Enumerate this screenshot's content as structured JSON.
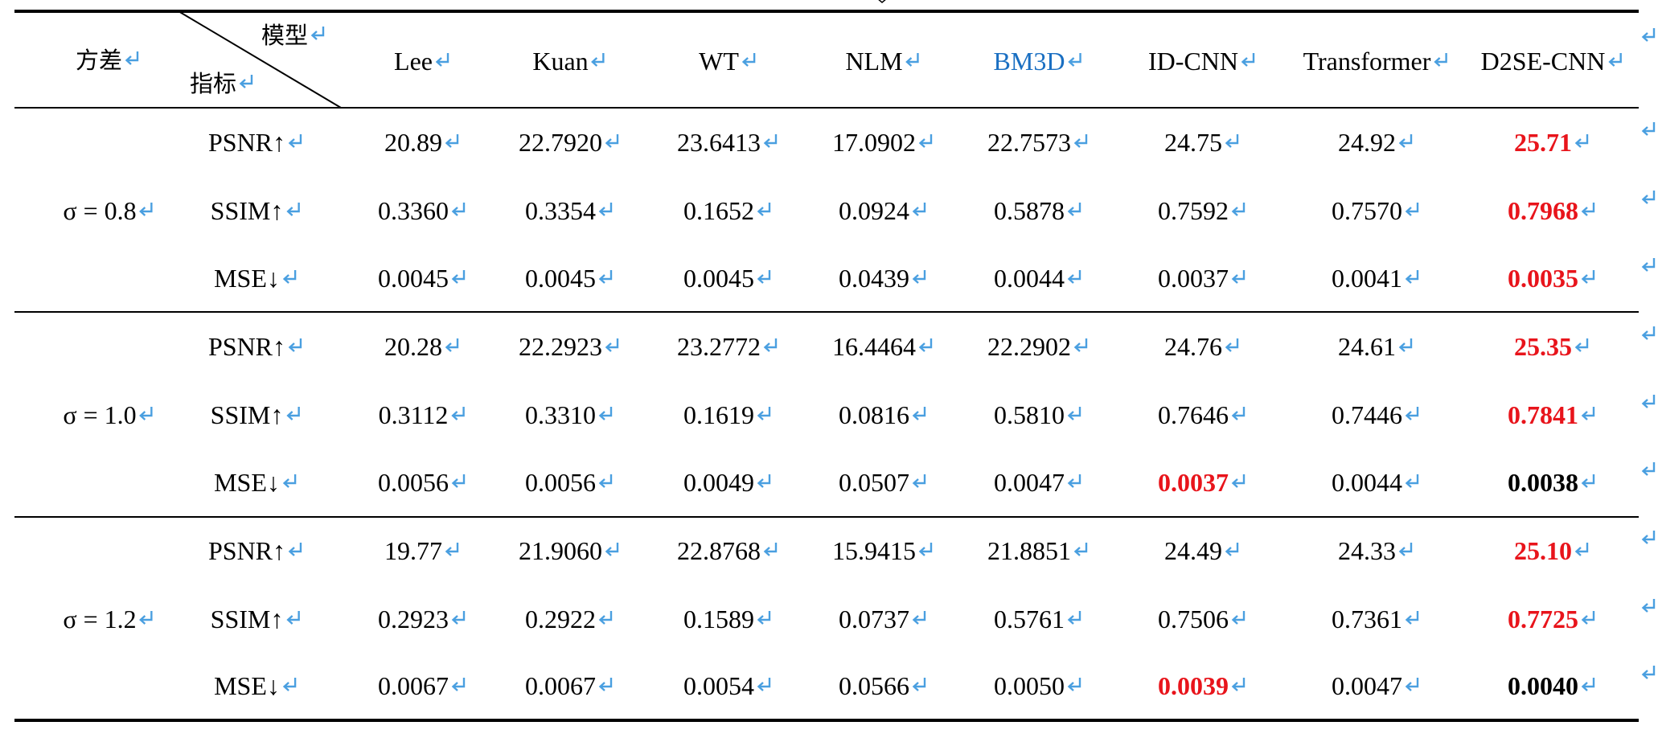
{
  "header": {
    "corner_top": "模型",
    "corner_bottom": "指标",
    "group_label": "方差",
    "models": [
      "Lee",
      "Kuan",
      "WT",
      "NLM",
      "BM3D",
      "ID-CNN",
      "Transformer",
      "D2SE-CNN"
    ]
  },
  "groups": [
    {
      "label": "σ = 0.8",
      "rows": [
        {
          "metric": "PSNR↑",
          "values": [
            "20.89",
            "22.7920",
            "23.6413",
            "17.0902",
            "22.7573",
            "24.75",
            "24.92",
            "25.71"
          ]
        },
        {
          "metric": "SSIM↑",
          "values": [
            "0.3360",
            "0.3354",
            "0.1652",
            "0.0924",
            "0.5878",
            "0.7592",
            "0.7570",
            "0.7968"
          ]
        },
        {
          "metric": "MSE↓",
          "values": [
            "0.0045",
            "0.0045",
            "0.0045",
            "0.0439",
            "0.0044",
            "0.0037",
            "0.0041",
            "0.0035"
          ]
        }
      ]
    },
    {
      "label": "σ = 1.0",
      "rows": [
        {
          "metric": "PSNR↑",
          "values": [
            "20.28",
            "22.2923",
            "23.2772",
            "16.4464",
            "22.2902",
            "24.76",
            "24.61",
            "25.35"
          ]
        },
        {
          "metric": "SSIM↑",
          "values": [
            "0.3112",
            "0.3310",
            "0.1619",
            "0.0816",
            "0.5810",
            "0.7646",
            "0.7446",
            "0.7841"
          ]
        },
        {
          "metric": "MSE↓",
          "values": [
            "0.0056",
            "0.0056",
            "0.0049",
            "0.0507",
            "0.0047",
            "0.0037",
            "0.0044",
            "0.0038"
          ]
        }
      ]
    },
    {
      "label": "σ = 1.2",
      "rows": [
        {
          "metric": "PSNR↑",
          "values": [
            "19.77",
            "21.9060",
            "22.8768",
            "15.9415",
            "21.8851",
            "24.49",
            "24.33",
            "25.10"
          ]
        },
        {
          "metric": "SSIM↑",
          "values": [
            "0.2923",
            "0.2922",
            "0.1589",
            "0.0737",
            "0.5761",
            "0.7506",
            "0.7361",
            "0.7725"
          ]
        },
        {
          "metric": "MSE↓",
          "values": [
            "0.0067",
            "0.0067",
            "0.0054",
            "0.0566",
            "0.0050",
            "0.0039",
            "0.0047",
            "0.0040"
          ]
        }
      ]
    }
  ],
  "highlight": {
    "red_cells": [
      [
        0,
        0,
        7
      ],
      [
        0,
        1,
        7
      ],
      [
        0,
        2,
        7
      ],
      [
        1,
        0,
        7
      ],
      [
        1,
        1,
        7
      ],
      [
        1,
        2,
        5
      ],
      [
        2,
        0,
        7
      ],
      [
        2,
        1,
        7
      ],
      [
        2,
        2,
        5
      ]
    ],
    "bold_cells": [
      [
        1,
        2,
        7
      ],
      [
        2,
        2,
        7
      ]
    ],
    "red": "#e8141b",
    "blue_header": "BM3D",
    "blue": "#1a6fc2",
    "return_mark_color": "#4a9fe0"
  },
  "icons": {
    "paragraph_mark": "return-arrow-icon"
  }
}
